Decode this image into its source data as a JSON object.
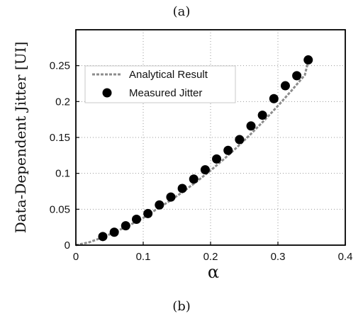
{
  "caption_top": "(a)",
  "caption_bottom": "(b)",
  "chart_data": {
    "type": "scatter",
    "xlabel": "α",
    "ylabel": "Data-Dependent Jitter [UI]",
    "xlim": [
      0,
      0.4
    ],
    "ylim": [
      0,
      0.3
    ],
    "x_ticks": [
      0,
      0.1,
      0.2,
      0.3,
      0.4
    ],
    "x_tick_labels": [
      "0",
      "0.1",
      "0.2",
      "0.3",
      "0.4"
    ],
    "y_ticks": [
      0,
      0.05,
      0.1,
      0.15,
      0.2,
      0.25
    ],
    "y_tick_labels": [
      "0",
      "0.05",
      "0.1",
      "0.15",
      "0.2",
      "0.25"
    ],
    "grid": true,
    "legend_position": "top-left",
    "series": [
      {
        "name": "Analytical Result",
        "kind": "line",
        "style": "dashed",
        "color": "#8c8c8c",
        "x": [
          0,
          0.02,
          0.04,
          0.06,
          0.08,
          0.1,
          0.12,
          0.14,
          0.16,
          0.18,
          0.2,
          0.22,
          0.24,
          0.26,
          0.28,
          0.3,
          0.32,
          0.34,
          0.347
        ],
        "y": [
          0,
          0.004,
          0.011,
          0.019,
          0.028,
          0.038,
          0.05,
          0.062,
          0.075,
          0.089,
          0.104,
          0.12,
          0.137,
          0.155,
          0.174,
          0.194,
          0.215,
          0.237,
          0.264
        ]
      },
      {
        "name": "Measured Jitter",
        "kind": "scatter",
        "color": "#000000",
        "x": [
          0.04,
          0.057,
          0.074,
          0.09,
          0.107,
          0.124,
          0.141,
          0.158,
          0.175,
          0.192,
          0.209,
          0.226,
          0.243,
          0.26,
          0.277,
          0.294,
          0.311,
          0.328,
          0.345
        ],
        "y": [
          0.012,
          0.018,
          0.027,
          0.036,
          0.044,
          0.056,
          0.067,
          0.079,
          0.092,
          0.105,
          0.12,
          0.132,
          0.147,
          0.166,
          0.181,
          0.204,
          0.222,
          0.236,
          0.258
        ]
      }
    ]
  }
}
